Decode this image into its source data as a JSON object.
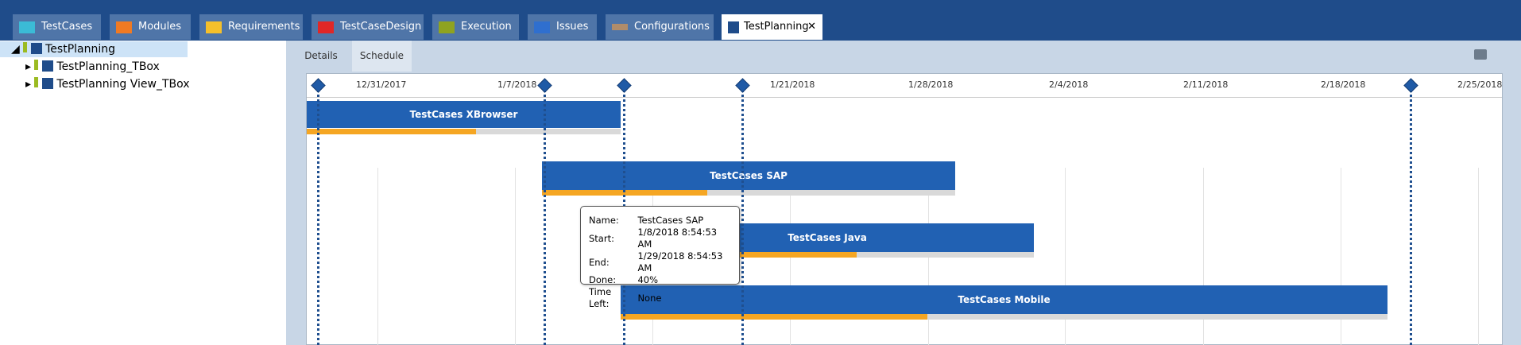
{
  "tabs": [
    "TestCases",
    "Modules",
    "Requirements",
    "TestCaseDesign",
    "Execution",
    "Issues",
    "Configurations",
    "TestPlanning"
  ],
  "tree": [
    "TestPlanning",
    "TestPlanning_TBox",
    "TestPlanning View_TBox"
  ],
  "subtabs": [
    "Details",
    "Schedule"
  ],
  "timeline": [
    "12/31/2017",
    "1/7/2018",
    "1/21/2018",
    "1/28/2018",
    "2/4/2018",
    "2/11/2018",
    "2/18/2018",
    "2/25/2018"
  ],
  "tasks": [
    "TestCases XBrowser",
    "TestCases SAP",
    "TestCases Java",
    "TestCases Mobile"
  ],
  "tooltip": [
    [
      "Name:",
      "TestCases SAP"
    ],
    [
      "Start:",
      "1/8/2018 8:54:53 AM"
    ],
    [
      "End:",
      "1/29/2018 8:54:53 AM"
    ],
    [
      "Done:",
      "40%"
    ],
    [
      "Time Left:",
      "None"
    ]
  ]
}
